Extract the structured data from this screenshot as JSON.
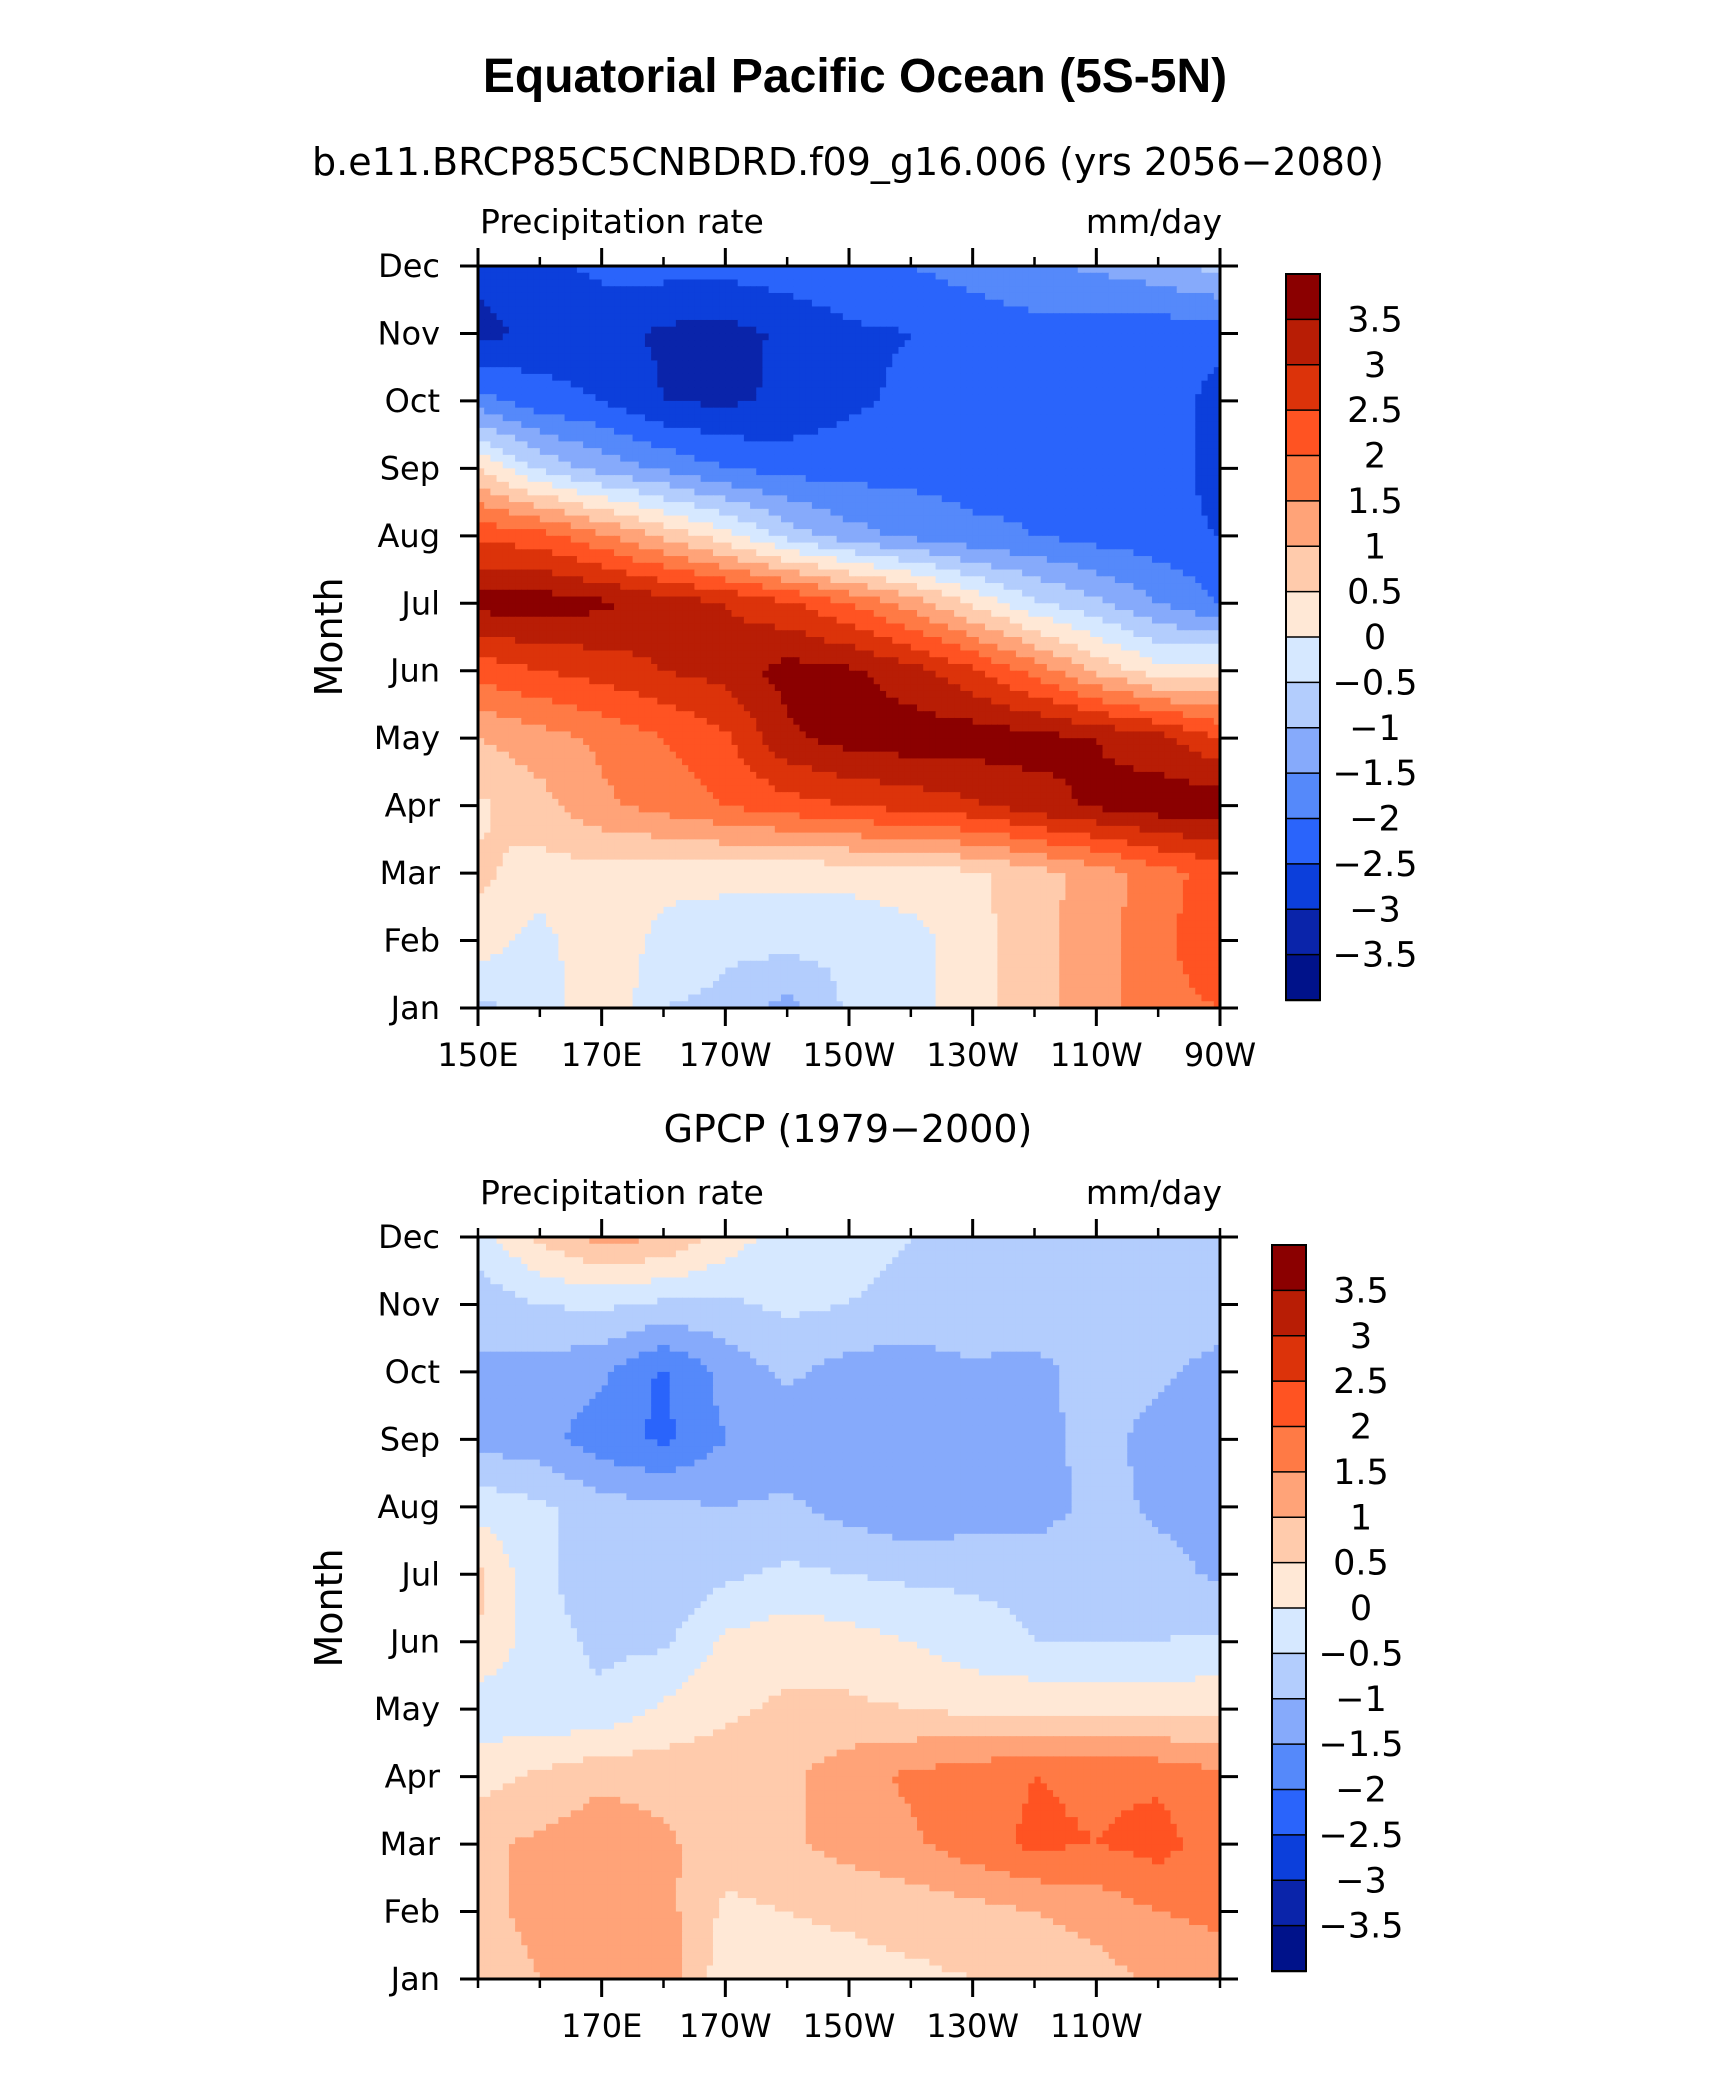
{
  "figure": {
    "title": "Equatorial Pacific Ocean (5S-5N)"
  },
  "chart_data": [
    {
      "type": "heatmap",
      "subtitle": "b.e11.BRCP85C5CNBDRD.f09_g16.006 (yrs 2056-2080)",
      "left_label": "Precipitation rate",
      "right_label": "mm/day",
      "ylabel": "Month",
      "xlabel": "",
      "x_ticks": [
        "150E",
        "170E",
        "170W",
        "150W",
        "130W",
        "110W",
        "90W"
      ],
      "y_ticks": [
        "Jan",
        "Feb",
        "Mar",
        "Apr",
        "May",
        "Jun",
        "Jul",
        "Aug",
        "Sep",
        "Oct",
        "Nov",
        "Dec"
      ],
      "colorbar": {
        "labels": [
          "3.5",
          "3",
          "2.5",
          "2",
          "1.5",
          "1",
          "0.5",
          "0",
          "-0.5",
          "-1",
          "-1.5",
          "-2",
          "-2.5",
          "-3",
          "-3.5"
        ],
        "colors": [
          "#8b0000",
          "#b81d05",
          "#dc330a",
          "#ff5322",
          "#ff7a45",
          "#ffa378",
          "#ffcbac",
          "#ffe8d6",
          "#d6e8ff",
          "#b3cdfd",
          "#86aafb",
          "#5589fa",
          "#2a64fb",
          "#0c3fdb",
          "#0a24aa",
          "#00128a"
        ]
      },
      "lons": [
        "150E",
        "160E",
        "170E",
        "180",
        "170W",
        "160W",
        "150W",
        "140W",
        "130W",
        "120W",
        "110W",
        "100W",
        "90W"
      ],
      "months": [
        "Jan",
        "Feb",
        "Mar",
        "Apr",
        "May",
        "Jun",
        "Jul",
        "Aug",
        "Sep",
        "Oct",
        "Nov",
        "Dec"
      ],
      "z": [
        [
          -0.6,
          -0.4,
          0.5,
          -0.5,
          -0.6,
          -1.2,
          -0.4,
          -0.2,
          0.3,
          0.8,
          1.3,
          1.8,
          2.0
        ],
        [
          0.3,
          -0.2,
          0.5,
          -0.2,
          -0.4,
          -0.3,
          -0.4,
          -0.2,
          0.3,
          0.8,
          1.3,
          1.8,
          2.5
        ],
        [
          0.6,
          0.3,
          0.3,
          0.2,
          0.2,
          0.1,
          0.2,
          0.3,
          0.4,
          0.8,
          1.2,
          1.8,
          2.2
        ],
        [
          0.4,
          0.8,
          1.4,
          1.7,
          2.0,
          2.3,
          2.5,
          2.7,
          2.9,
          3.3,
          3.6,
          3.8,
          3.9
        ],
        [
          1.0,
          1.3,
          1.6,
          2.0,
          2.4,
          3.4,
          3.7,
          3.8,
          3.8,
          3.7,
          3.5,
          3.2,
          2.5
        ],
        [
          2.2,
          2.5,
          2.7,
          3.0,
          3.2,
          3.7,
          3.6,
          3.2,
          2.6,
          1.8,
          0.9,
          0.2,
          0.3
        ],
        [
          3.7,
          3.8,
          3.6,
          3.3,
          3.0,
          2.6,
          2.0,
          1.3,
          0.4,
          -0.4,
          -0.9,
          -1.5,
          -2.0
        ],
        [
          2.4,
          2.2,
          1.6,
          0.9,
          0.2,
          -0.7,
          -1.3,
          -1.6,
          -1.9,
          -2.0,
          -2.2,
          -2.3,
          -2.5
        ],
        [
          0.5,
          -0.6,
          -1.2,
          -1.6,
          -2.0,
          -2.2,
          -2.2,
          -2.2,
          -2.2,
          -2.1,
          -2.1,
          -2.1,
          -2.8
        ],
        [
          -1.8,
          -2.3,
          -2.5,
          -3.0,
          -3.1,
          -2.9,
          -2.6,
          -2.4,
          -2.2,
          -2.0,
          -2.1,
          -2.2,
          -2.7
        ],
        [
          -3.2,
          -2.8,
          -2.8,
          -3.1,
          -3.2,
          -2.9,
          -2.6,
          -2.5,
          -2.3,
          -2.2,
          -2.3,
          -2.3,
          -2.3
        ],
        [
          -2.8,
          -2.6,
          -2.4,
          -2.3,
          -2.3,
          -2.2,
          -2.1,
          -2.0,
          -1.8,
          -1.6,
          -1.4,
          -1.2,
          -0.8
        ]
      ]
    },
    {
      "type": "heatmap",
      "subtitle": "GPCP (1979-2000)",
      "left_label": "Precipitation rate",
      "right_label": "mm/day",
      "ylabel": "Month",
      "xlabel": "",
      "x_ticks": [
        "170E",
        "170W",
        "150W",
        "130W",
        "110W"
      ],
      "y_ticks": [
        "Jan",
        "Feb",
        "Mar",
        "Apr",
        "May",
        "Jun",
        "Jul",
        "Aug",
        "Sep",
        "Oct",
        "Nov",
        "Dec"
      ],
      "colorbar": {
        "labels": [
          "3.5",
          "3",
          "2.5",
          "2",
          "1.5",
          "1",
          "0.5",
          "0",
          "-0.5",
          "-1",
          "-1.5",
          "-2",
          "-2.5",
          "-3",
          "-3.5"
        ],
        "colors": [
          "#8b0000",
          "#b81d05",
          "#dc330a",
          "#ff5322",
          "#ff7a45",
          "#ffa378",
          "#ffcbac",
          "#ffe8d6",
          "#d6e8ff",
          "#b3cdfd",
          "#86aafb",
          "#5589fa",
          "#2a64fb",
          "#0c3fdb",
          "#0a24aa",
          "#00128a"
        ]
      },
      "lons": [
        "150E",
        "160E",
        "170E",
        "180",
        "170W",
        "160W",
        "150W",
        "140W",
        "130W",
        "120W",
        "110W",
        "100W",
        "90W"
      ],
      "months": [
        "Jan",
        "Feb",
        "Mar",
        "Apr",
        "May",
        "Jun",
        "Jul",
        "Aug",
        "Sep",
        "Oct",
        "Nov",
        "Dec"
      ],
      "z": [
        [
          0.8,
          1.0,
          1.2,
          1.3,
          0.2,
          0.3,
          0.3,
          0.4,
          0.5,
          0.6,
          0.8,
          1.1,
          1.3
        ],
        [
          0.9,
          1.1,
          1.3,
          1.2,
          0.4,
          0.5,
          0.6,
          0.7,
          0.8,
          1.0,
          1.2,
          1.5,
          1.6
        ],
        [
          0.9,
          1.1,
          1.3,
          1.1,
          0.7,
          0.9,
          1.2,
          1.4,
          1.8,
          2.1,
          2.0,
          2.2,
          1.7
        ],
        [
          0.3,
          0.6,
          0.9,
          0.8,
          0.8,
          0.9,
          1.3,
          1.6,
          1.8,
          2.0,
          1.9,
          1.9,
          1.6
        ],
        [
          -0.3,
          -0.4,
          -0.4,
          0.1,
          0.4,
          0.6,
          0.6,
          0.5,
          0.4,
          0.4,
          0.3,
          0.3,
          0.4
        ],
        [
          0.5,
          -0.3,
          -0.6,
          -0.6,
          0.1,
          0.3,
          0.2,
          0.0,
          -0.3,
          -0.5,
          -0.5,
          -0.5,
          -0.4
        ],
        [
          0.6,
          -0.4,
          -0.8,
          -0.9,
          -0.6,
          -0.4,
          -0.5,
          -0.6,
          -0.6,
          -0.6,
          -0.6,
          -0.8,
          -1.1
        ],
        [
          -0.2,
          -0.4,
          -0.8,
          -0.9,
          -1.0,
          -0.9,
          -1.2,
          -1.4,
          -1.3,
          -1.3,
          -0.8,
          -1.1,
          -1.2
        ],
        [
          -1.2,
          -1.3,
          -1.8,
          -2.1,
          -1.5,
          -1.3,
          -1.4,
          -1.4,
          -1.3,
          -1.2,
          -0.8,
          -1.2,
          -1.3
        ],
        [
          -1.1,
          -1.2,
          -1.4,
          -2.1,
          -1.3,
          -0.9,
          -1.2,
          -1.3,
          -1.1,
          -1.2,
          -0.7,
          -0.9,
          -1.2
        ],
        [
          -0.8,
          -0.5,
          -0.4,
          -0.6,
          -0.6,
          -0.4,
          -0.5,
          -0.6,
          -0.6,
          -0.6,
          -0.7,
          -0.7,
          -0.7
        ],
        [
          -0.2,
          0.6,
          1.2,
          1.0,
          0.3,
          -0.3,
          -0.4,
          -0.5,
          -0.6,
          -0.6,
          -0.6,
          -0.6,
          -0.6
        ]
      ]
    }
  ]
}
